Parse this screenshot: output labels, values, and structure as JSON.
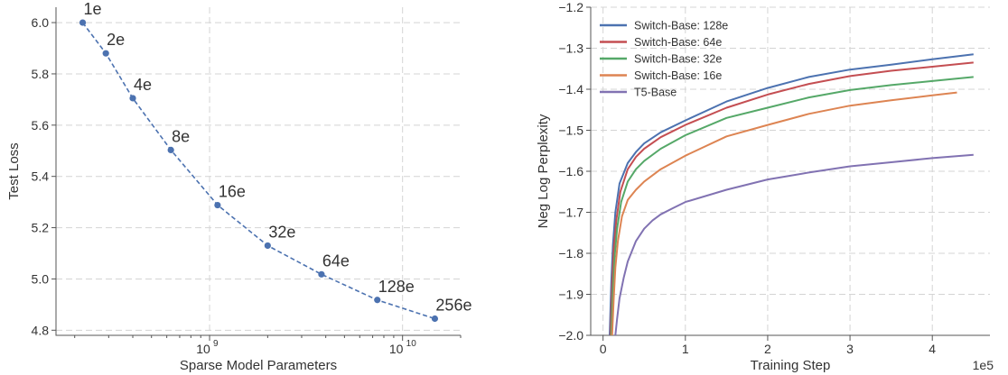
{
  "chart_data": [
    {
      "type": "line",
      "title": "",
      "xlabel": "Sparse Model Parameters",
      "ylabel": "Test Loss",
      "xscale": "log",
      "xlim": [
        160000000,
        20000000000
      ],
      "ylim": [
        4.78,
        6.06
      ],
      "grid": true,
      "line_style": "dashed",
      "marker": "circle",
      "color": "#4c72b0",
      "yticks": [
        4.8,
        5.0,
        5.2,
        5.4,
        5.6,
        5.8,
        6.0
      ],
      "ytick_labels": [
        "4.8",
        "5.0",
        "5.2",
        "5.4",
        "5.6",
        "5.8",
        "6.0"
      ],
      "xticks": [
        1000000000,
        10000000000
      ],
      "xtick_base": "10",
      "xtick_exponents": [
        "9",
        "10"
      ],
      "x": [
        220000000,
        290000000,
        400000000,
        630000000,
        1100000000,
        2000000000,
        3800000000,
        7400000000,
        14700000000
      ],
      "y": [
        6.0,
        5.88,
        5.705,
        5.503,
        5.288,
        5.13,
        5.018,
        4.918,
        4.845
      ],
      "point_labels": [
        "1e",
        "2e",
        "4e",
        "8e",
        "16e",
        "32e",
        "64e",
        "128e",
        "256e"
      ]
    },
    {
      "type": "line",
      "title": "",
      "xlabel": "Training Step",
      "ylabel": "Neg Log Perplexity",
      "xlim": [
        -0.15,
        4.7
      ],
      "ylim": [
        -2.0,
        -1.2
      ],
      "grid": true,
      "legend_position": "top-left",
      "xticks": [
        0,
        1,
        2,
        3,
        4
      ],
      "xtick_labels": [
        "0",
        "1",
        "2",
        "3",
        "4"
      ],
      "x_offset_label": "1e5",
      "yticks": [
        -2.0,
        -1.9,
        -1.8,
        -1.7,
        -1.6,
        -1.5,
        -1.4,
        -1.3,
        -1.2
      ],
      "ytick_labels": [
        "−2.0",
        "−1.9",
        "−1.8",
        "−1.7",
        "−1.6",
        "−1.5",
        "−1.4",
        "−1.3",
        "−1.2"
      ],
      "series": [
        {
          "name": "Switch-Base: 128e",
          "color": "#4c72b0",
          "x": [
            0.08,
            0.1,
            0.12,
            0.15,
            0.2,
            0.3,
            0.4,
            0.5,
            0.7,
            1.0,
            1.5,
            2.0,
            2.5,
            3.0,
            3.5,
            4.0,
            4.5
          ],
          "y": [
            -2.0,
            -1.87,
            -1.78,
            -1.7,
            -1.63,
            -1.58,
            -1.553,
            -1.532,
            -1.505,
            -1.476,
            -1.43,
            -1.397,
            -1.37,
            -1.352,
            -1.34,
            -1.327,
            -1.315
          ]
        },
        {
          "name": "Switch-Base: 64e",
          "color": "#c44e52",
          "x": [
            0.09,
            0.11,
            0.13,
            0.16,
            0.21,
            0.3,
            0.4,
            0.5,
            0.7,
            1.0,
            1.5,
            2.0,
            2.5,
            3.0,
            3.5,
            4.0,
            4.5
          ],
          "y": [
            -2.0,
            -1.88,
            -1.79,
            -1.72,
            -1.65,
            -1.595,
            -1.565,
            -1.545,
            -1.517,
            -1.487,
            -1.445,
            -1.413,
            -1.387,
            -1.368,
            -1.355,
            -1.345,
            -1.335
          ]
        },
        {
          "name": "Switch-Base: 32e",
          "color": "#55a868",
          "x": [
            0.1,
            0.12,
            0.14,
            0.17,
            0.22,
            0.3,
            0.4,
            0.5,
            0.7,
            1.0,
            1.5,
            2.0,
            2.5,
            3.0,
            3.5,
            4.0,
            4.5
          ],
          "y": [
            -2.0,
            -1.89,
            -1.81,
            -1.74,
            -1.675,
            -1.625,
            -1.595,
            -1.575,
            -1.545,
            -1.512,
            -1.47,
            -1.445,
            -1.42,
            -1.402,
            -1.39,
            -1.38,
            -1.37
          ]
        },
        {
          "name": "Switch-Base: 16e",
          "color": "#dd8452",
          "x": [
            0.11,
            0.13,
            0.15,
            0.18,
            0.23,
            0.3,
            0.4,
            0.5,
            0.7,
            1.0,
            1.5,
            2.0,
            2.5,
            3.0,
            3.5,
            4.0,
            4.3
          ],
          "y": [
            -2.0,
            -1.91,
            -1.835,
            -1.77,
            -1.71,
            -1.67,
            -1.645,
            -1.625,
            -1.595,
            -1.562,
            -1.515,
            -1.487,
            -1.46,
            -1.44,
            -1.427,
            -1.415,
            -1.408
          ]
        },
        {
          "name": "T5-Base",
          "color": "#8172b2",
          "x": [
            0.15,
            0.17,
            0.2,
            0.25,
            0.3,
            0.4,
            0.5,
            0.6,
            0.7,
            0.85,
            1.0,
            1.5,
            2.0,
            2.5,
            3.0,
            3.5,
            4.0,
            4.5
          ],
          "y": [
            -2.0,
            -1.96,
            -1.91,
            -1.86,
            -1.82,
            -1.77,
            -1.74,
            -1.72,
            -1.705,
            -1.69,
            -1.675,
            -1.645,
            -1.62,
            -1.603,
            -1.588,
            -1.578,
            -1.568,
            -1.56
          ]
        }
      ]
    }
  ]
}
